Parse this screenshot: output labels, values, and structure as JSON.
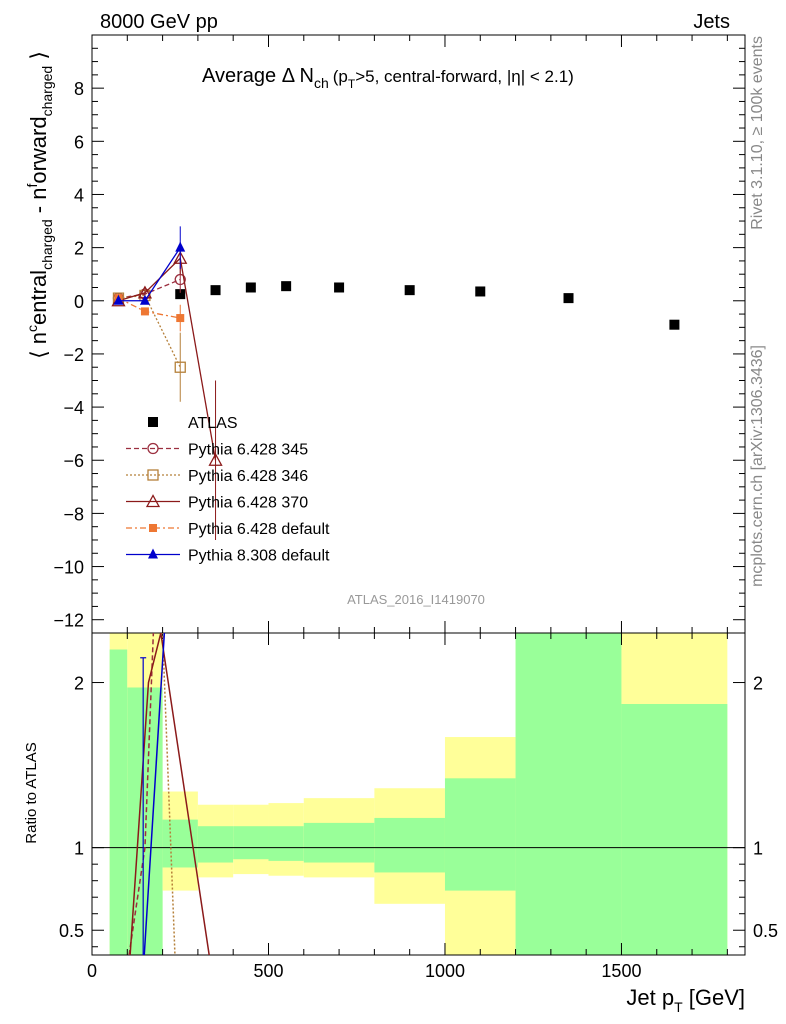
{
  "header": {
    "left": "8000 GeV pp",
    "right": "Jets",
    "side_top": "Rivet 3.1.10, ≥ 100k events",
    "side_bottom": "mcplots.cern.ch [arXiv:1306.3436]",
    "watermark": "ATLAS_2016_I1419070"
  },
  "title": {
    "main": "Average Δ N",
    "main_sub": "ch",
    "cond_p": "(p",
    "cond_sub": "T",
    "cond_rest": ">5, central-forward, |η| < 2.1)"
  },
  "yaxis": {
    "label_open": "⟨ n",
    "label_c1": "c",
    "label_t1": "entral",
    "label_s1": "charged",
    "label_mid": " - n",
    "label_f": "f",
    "label_t2": "orward",
    "label_s2": "charged",
    "label_close": " ⟩",
    "ratio_label": "Ratio to ATLAS"
  },
  "xaxis": {
    "label_main": "Jet p",
    "label_sub": "T",
    "label_unit": " [GeV]"
  },
  "colors": {
    "atlas": "#000000",
    "p345": "#9b2f3f",
    "p346": "#b5803a",
    "p370": "#8b1a1a",
    "p6def": "#ee7733",
    "p8def": "#0000cc",
    "band_green": "#99ff99",
    "band_yellow": "#ffff99"
  },
  "chart_data": {
    "type": "scatter",
    "x_range": [
      0,
      1850
    ],
    "y_range_main": [
      -12.5,
      10
    ],
    "y_range_ratio": [
      0.35,
      2.3
    ],
    "y_ticks_main": [
      -12,
      -10,
      -8,
      -6,
      -4,
      -2,
      0,
      2,
      4,
      6,
      8
    ],
    "y_ticks_ratio": [
      0.5,
      1,
      2
    ],
    "x_ticks": [
      0,
      500,
      1000,
      1500
    ],
    "series": [
      {
        "name": "ATLAS",
        "style": "atlas",
        "x": [
          250,
          350,
          450,
          550,
          700,
          900,
          1100,
          1350,
          1650
        ],
        "y": [
          0.25,
          0.4,
          0.5,
          0.55,
          0.5,
          0.4,
          0.35,
          0.1,
          -0.9
        ]
      },
      {
        "name": "Pythia 6.428 345",
        "style": "p345",
        "x": [
          75,
          150,
          250
        ],
        "y": [
          0.1,
          0.25,
          0.8
        ],
        "err": [
          0.05,
          0.1,
          0.5
        ]
      },
      {
        "name": "Pythia 6.428 346",
        "style": "p346",
        "x": [
          75,
          150,
          250
        ],
        "y": [
          0.1,
          0.2,
          -2.5
        ],
        "err": [
          0.05,
          0.1,
          1.3
        ]
      },
      {
        "name": "Pythia 6.428 370",
        "style": "p370",
        "x": [
          75,
          150,
          250,
          350
        ],
        "y": [
          0.0,
          0.3,
          1.6,
          -6.0
        ],
        "err": [
          0.05,
          0.1,
          0.6,
          3.0
        ]
      },
      {
        "name": "Pythia 6.428 default",
        "style": "p6def",
        "x": [
          75,
          150,
          250
        ],
        "y": [
          0.1,
          -0.4,
          -0.65
        ],
        "err": [
          0.05,
          0.1,
          0.5
        ]
      },
      {
        "name": "Pythia 8.308 default",
        "style": "p8def",
        "x": [
          75,
          150,
          250
        ],
        "y": [
          0.0,
          0.0,
          2.0
        ],
        "err": [
          0.05,
          0.1,
          0.8
        ]
      }
    ],
    "ratio_bands": [
      {
        "x0": 50,
        "x1": 100,
        "y_lo": 0.35,
        "y_hi": 2.3,
        "g_lo": 0.35,
        "g_hi": 2.2
      },
      {
        "x0": 100,
        "x1": 200,
        "y_lo": 0.35,
        "y_hi": 2.3,
        "g_lo": 0.35,
        "g_hi": 1.97
      },
      {
        "x0": 200,
        "x1": 300,
        "y_lo": 0.74,
        "y_hi": 1.34,
        "g_lo": 0.88,
        "g_hi": 1.17
      },
      {
        "x0": 300,
        "x1": 400,
        "y_lo": 0.82,
        "y_hi": 1.26,
        "g_lo": 0.91,
        "g_hi": 1.13
      },
      {
        "x0": 400,
        "x1": 500,
        "y_lo": 0.84,
        "y_hi": 1.26,
        "g_lo": 0.93,
        "g_hi": 1.13
      },
      {
        "x0": 500,
        "x1": 600,
        "y_lo": 0.83,
        "y_hi": 1.27,
        "g_lo": 0.92,
        "g_hi": 1.13
      },
      {
        "x0": 600,
        "x1": 800,
        "y_lo": 0.82,
        "y_hi": 1.3,
        "g_lo": 0.91,
        "g_hi": 1.15
      },
      {
        "x0": 800,
        "x1": 1000,
        "y_lo": 0.66,
        "y_hi": 1.36,
        "g_lo": 0.85,
        "g_hi": 1.18
      },
      {
        "x0": 1000,
        "x1": 1200,
        "y_lo": 0.35,
        "y_hi": 1.67,
        "g_lo": 0.74,
        "g_hi": 1.42
      },
      {
        "x0": 1200,
        "x1": 1500,
        "y_lo": 0.35,
        "y_hi": 2.3,
        "g_lo": 0.35,
        "g_hi": 2.3
      },
      {
        "x0": 1500,
        "x1": 1800,
        "y_lo": 0.35,
        "y_hi": 2.3,
        "g_lo": 0.35,
        "g_hi": 1.87
      }
    ],
    "ratio_lines": [
      {
        "style": "p345",
        "dash": "5,3",
        "x": [
          105,
          150,
          205
        ],
        "y": [
          0.35,
          1.0,
          4.0
        ]
      },
      {
        "style": "p346",
        "dash": "2,2",
        "x": [
          150,
          200,
          235
        ],
        "y": [
          4.0,
          2.3,
          0.35
        ]
      },
      {
        "style": "p370",
        "dash": "",
        "x": [
          108,
          160,
          195,
          332
        ],
        "y": [
          0.35,
          2.0,
          2.3,
          0.35
        ]
      },
      {
        "style": "p8def",
        "dash": "",
        "x": [
          148,
          205
        ],
        "y": [
          0.35,
          2.3
        ]
      }
    ],
    "ratio_errbar": {
      "style": "p8def",
      "x": 145,
      "y_lo": 0.35,
      "y_hi": 2.15
    }
  }
}
